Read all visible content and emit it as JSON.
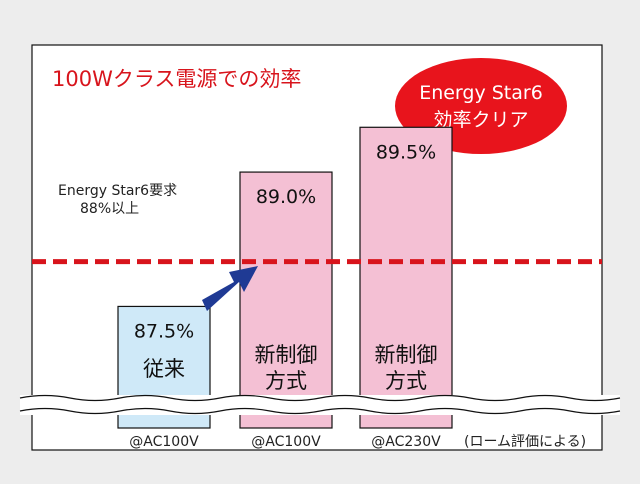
{
  "chart_data": {
    "type": "bar",
    "title": "100Wクラス電源での効率",
    "badge": {
      "line1": "Energy Star6",
      "line2": "効率クリア",
      "color": "#e8141c"
    },
    "threshold": {
      "label_line1": "Energy Star6要求",
      "label_line2": "88%以上",
      "value": 88,
      "color": "#d8141c"
    },
    "categories": [
      "@AC100V",
      "@AC100V",
      "@AC230V"
    ],
    "bar_names": [
      [
        "従来"
      ],
      [
        "新制御",
        "方式"
      ],
      [
        "新制御",
        "方式"
      ]
    ],
    "values": [
      87.5,
      89.0,
      89.5
    ],
    "value_labels": [
      "87.5%",
      "89.0%",
      "89.5%"
    ],
    "bar_colors": [
      "#cfe9f8",
      "#f4c0d4",
      "#f4c0d4"
    ],
    "note": "(ローム評価による)",
    "ylim": [
      86.5,
      90.0
    ],
    "axis_break": true,
    "arrow_color": "#1f3a94",
    "title_color": "#d8141c"
  }
}
